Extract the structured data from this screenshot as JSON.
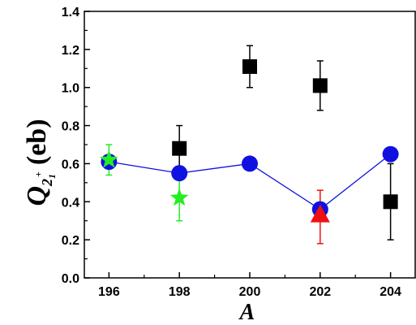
{
  "chart_data": {
    "type": "scatter",
    "xlabel": "A",
    "ylabel": {
      "symbol": "Q",
      "subscript": "2",
      "subsub": "1",
      "superscript": "+",
      "unit": "(eb)"
    },
    "xlim": [
      195.3,
      204.7
    ],
    "ylim": [
      0.0,
      1.4
    ],
    "xticks": [
      196,
      198,
      200,
      202,
      204
    ],
    "xtick_labels": [
      "196",
      "198",
      "200",
      "202",
      "204"
    ],
    "yticks": [
      0.0,
      0.2,
      0.4,
      0.6,
      0.8,
      1.0,
      1.2,
      1.4
    ],
    "ytick_labels": [
      "0.0",
      "0.2",
      "0.4",
      "0.6",
      "0.8",
      "1.0",
      "1.2",
      "1.4"
    ],
    "grid": false,
    "series": [
      {
        "marker": "square",
        "color": "#000000",
        "connect": false,
        "points": [
          {
            "x": 198,
            "y": 0.68,
            "err_low": 0.55,
            "err_high": 0.8
          },
          {
            "x": 200,
            "y": 1.11,
            "err_low": 1.0,
            "err_high": 1.22
          },
          {
            "x": 202,
            "y": 1.01,
            "err_low": 0.88,
            "err_high": 1.14
          },
          {
            "x": 204,
            "y": 0.4,
            "err_low": 0.2,
            "err_high": 0.6
          }
        ]
      },
      {
        "marker": "circle",
        "color": "#1010e0",
        "connect": true,
        "points": [
          {
            "x": 196,
            "y": 0.61
          },
          {
            "x": 198,
            "y": 0.55
          },
          {
            "x": 200,
            "y": 0.6
          },
          {
            "x": 202,
            "y": 0.36
          },
          {
            "x": 204,
            "y": 0.65
          }
        ]
      },
      {
        "marker": "star",
        "color": "#22ee22",
        "connect": false,
        "points": [
          {
            "x": 196,
            "y": 0.62,
            "err_low": 0.54,
            "err_high": 0.7
          },
          {
            "x": 198,
            "y": 0.42,
            "err_low": 0.3,
            "err_high": 0.54
          }
        ]
      },
      {
        "marker": "triangle",
        "color": "#ee1111",
        "connect": false,
        "points": [
          {
            "x": 202,
            "y": 0.33,
            "err_low": 0.18,
            "err_high": 0.46
          }
        ]
      }
    ]
  }
}
